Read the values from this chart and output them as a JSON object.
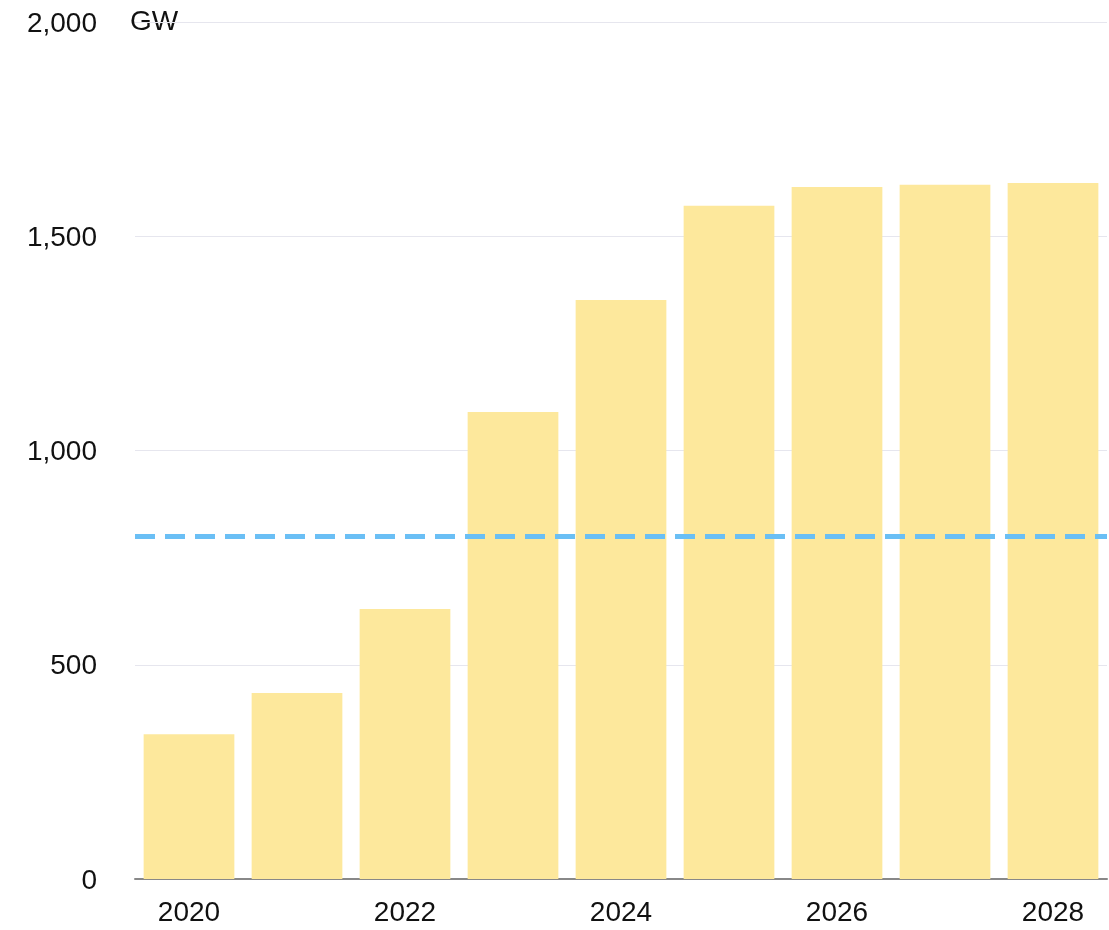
{
  "chart_data": {
    "type": "bar",
    "ylabel": "GW",
    "categories": [
      "2020",
      null,
      "2022",
      null,
      "2024",
      null,
      "2026",
      null,
      "2028"
    ],
    "values": [
      338,
      434,
      630,
      1090,
      1351,
      1571,
      1615,
      1620,
      1624
    ],
    "color": "#fde89c",
    "ylim": [
      0,
      2000
    ],
    "yticks": [
      0,
      500,
      {
        "value": 1000,
        "label": "1,000"
      },
      {
        "value": 1500,
        "label": "1,500"
      },
      {
        "value": 2000,
        "label": "2,000"
      }
    ],
    "grid": "y",
    "ref_lines": [
      {
        "axis": "y",
        "value": 800,
        "color": "#6abff5",
        "line_style": "dashed"
      }
    ]
  }
}
